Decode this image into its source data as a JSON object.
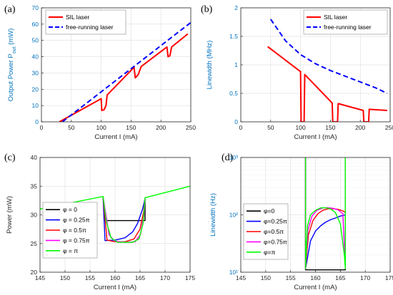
{
  "panel_letters": [
    "(a)",
    "(b)",
    "(c)",
    "(d)"
  ],
  "colors": {
    "sil": "#ff0000",
    "free": "#0000ff",
    "phi0": "#000000",
    "phi025": "#0000ff",
    "phi05": "#ff0000",
    "phi075": "#ff00ff",
    "phi1": "#00ff00",
    "axis_blue": "#0072bd",
    "axis_dark": "#262626"
  },
  "chart_data": [
    {
      "panel": "(a)",
      "type": "line",
      "xlabel": "Current I (mA)",
      "ylabel": "Output Power P_out (mW)",
      "xlim": [
        0,
        250
      ],
      "ylim": [
        0,
        70
      ],
      "xticks": [
        0,
        50,
        100,
        150,
        200,
        250
      ],
      "yticks": [
        0,
        10,
        20,
        30,
        40,
        50,
        60,
        70
      ],
      "grid": true,
      "legend": "top-left",
      "series": [
        {
          "name": "SIL laser",
          "style": "solid",
          "color": "#ff0000",
          "points": [
            [
              30,
              0
            ],
            [
              100,
              14.2
            ],
            [
              101,
              7
            ],
            [
              105,
              7.5
            ],
            [
              108,
              10
            ],
            [
              110,
              16.5
            ],
            [
              155,
              33.5
            ],
            [
              157,
              27
            ],
            [
              162,
              29
            ],
            [
              167,
              34
            ],
            [
              210,
              46
            ],
            [
              212,
              40
            ],
            [
              215,
              40.5
            ],
            [
              218,
              46
            ],
            [
              245,
              54
            ]
          ]
        },
        {
          "name": "free-running laser",
          "style": "dashed",
          "color": "#0000ff",
          "points": [
            [
              35,
              0
            ],
            [
              250,
              61
            ]
          ]
        }
      ]
    },
    {
      "panel": "(b)",
      "type": "line",
      "xlabel": "Current I (mA)",
      "ylabel": "Linewidth (MHz)",
      "xlim": [
        0,
        250
      ],
      "ylim": [
        0,
        2
      ],
      "xticks": [
        0,
        50,
        100,
        150,
        200,
        250
      ],
      "yticks": [
        0,
        0.5,
        1,
        1.5,
        2
      ],
      "grid": true,
      "legend": "top-right",
      "series": [
        {
          "name": "SIL laser",
          "style": "solid",
          "color": "#ff0000",
          "points": [
            [
              45,
              1.32
            ],
            [
              100,
              0.88
            ],
            [
              101,
              0
            ],
            [
              106,
              0
            ],
            [
              107,
              0.83
            ],
            [
              153,
              0.33
            ],
            [
              154,
              0
            ],
            [
              162,
              0
            ],
            [
              163,
              0.32
            ],
            [
              205,
              0.2
            ],
            [
              206,
              0
            ],
            [
              214,
              0
            ],
            [
              215,
              0.22
            ],
            [
              245,
              0.2
            ]
          ]
        },
        {
          "name": "free-running laser",
          "style": "dashed",
          "color": "#0000ff",
          "points": [
            [
              50,
              1.8
            ],
            [
              75,
              1.42
            ],
            [
              100,
              1.18
            ],
            [
              125,
              1.02
            ],
            [
              150,
              0.9
            ],
            [
              175,
              0.8
            ],
            [
              200,
              0.7
            ],
            [
              225,
              0.6
            ],
            [
              245,
              0.5
            ]
          ]
        }
      ]
    },
    {
      "panel": "(c)",
      "type": "line",
      "xlabel": "Current I (mA)",
      "ylabel": "Power (mW)",
      "xlim": [
        145,
        175
      ],
      "ylim": [
        20,
        40
      ],
      "xticks": [
        145,
        150,
        155,
        160,
        165,
        170,
        175
      ],
      "yticks": [
        20,
        25,
        30,
        35,
        40
      ],
      "grid": true,
      "legend": "bottom-left",
      "series": [
        {
          "name": "φ = 0",
          "color": "#000000",
          "points": [
            [
              157.6,
              33.2
            ],
            [
              158,
              29
            ],
            [
              166,
              29
            ],
            [
              166,
              32.7
            ]
          ]
        },
        {
          "name": "φ = 0.25π",
          "color": "#0000ff",
          "points": [
            [
              157.6,
              33.2
            ],
            [
              158,
              25.5
            ],
            [
              160,
              25.6
            ],
            [
              162,
              26
            ],
            [
              163.5,
              27
            ],
            [
              164.5,
              28.5
            ],
            [
              165.5,
              31
            ],
            [
              166,
              32.8
            ]
          ]
        },
        {
          "name": "φ = 0.5π",
          "color": "#ff0000",
          "points": [
            [
              157.6,
              33.2
            ],
            [
              158.4,
              25.6
            ],
            [
              160,
              25.3
            ],
            [
              162,
              25.3
            ],
            [
              163.8,
              25.8
            ],
            [
              165,
              27.5
            ],
            [
              165.7,
              30.5
            ],
            [
              166,
              32.8
            ]
          ]
        },
        {
          "name": "φ = 0.75π",
          "color": "#ff00ff",
          "points": [
            [
              157.6,
              33.2
            ],
            [
              158.8,
              26.5
            ],
            [
              160,
              25.4
            ],
            [
              162,
              25.2
            ],
            [
              164,
              25.3
            ],
            [
              165.1,
              26.6
            ],
            [
              165.8,
              30
            ],
            [
              166,
              32.8
            ]
          ]
        },
        {
          "name": "φ = π",
          "color": "#00ff00",
          "points": [
            [
              145,
              31
            ],
            [
              157.6,
              33.2
            ],
            [
              158.2,
              29
            ],
            [
              159.2,
              26
            ],
            [
              160.5,
              25.2
            ],
            [
              163.5,
              25.2
            ],
            [
              164.8,
              25.8
            ],
            [
              165.6,
              28.5
            ],
            [
              166,
              33
            ],
            [
              175,
              35
            ]
          ]
        }
      ]
    },
    {
      "panel": "(d)",
      "type": "line",
      "xlabel": "Current I (mA)",
      "ylabel": "Linewidth (Hz)",
      "xlim": [
        145,
        175
      ],
      "ylim": [
        10,
        1000
      ],
      "yscale": "log",
      "xticks": [
        145,
        150,
        155,
        160,
        165,
        170,
        175
      ],
      "yticks": [
        10,
        100,
        1000
      ],
      "ytick_labels": [
        "10¹",
        "10²",
        "10³"
      ],
      "grid": true,
      "legend": "left",
      "series": [
        {
          "name": "φ=0",
          "color": "#000000",
          "points": [
            [
              158,
              1000
            ],
            [
              158,
              11
            ],
            [
              166,
              11
            ],
            [
              166,
              1000
            ]
          ]
        },
        {
          "name": "φ=0.25π",
          "color": "#0000ff",
          "points": [
            [
              158,
              1000
            ],
            [
              158,
              11.5
            ],
            [
              159,
              35
            ],
            [
              160,
              52
            ],
            [
              161,
              64
            ],
            [
              162,
              74
            ],
            [
              163,
              82
            ],
            [
              164,
              88
            ],
            [
              165,
              95
            ],
            [
              166,
              100
            ],
            [
              166,
              1000
            ]
          ]
        },
        {
          "name": "φ=0.5π",
          "color": "#ff0000",
          "points": [
            [
              158,
              1000
            ],
            [
              158,
              11.5
            ],
            [
              158.6,
              45
            ],
            [
              159.5,
              80
            ],
            [
              160.5,
              105
            ],
            [
              161.5,
              120
            ],
            [
              162.5,
              127
            ],
            [
              163.5,
              128
            ],
            [
              164.5,
              125
            ],
            [
              165.5,
              117
            ],
            [
              166,
              110
            ],
            [
              166,
              1000
            ]
          ]
        },
        {
          "name": "φ=0.75π",
          "color": "#ff00ff",
          "points": [
            [
              158,
              1000
            ],
            [
              158,
              11.5
            ],
            [
              158.5,
              55
            ],
            [
              159.3,
              95
            ],
            [
              160.3,
              120
            ],
            [
              161.5,
              132
            ],
            [
              162.5,
              133
            ],
            [
              163.5,
              130
            ],
            [
              164.5,
              122
            ],
            [
              165.5,
              105
            ],
            [
              166,
              11.5
            ],
            [
              166,
              1000
            ]
          ]
        },
        {
          "name": "φ=π",
          "color": "#00ff00",
          "points": [
            [
              158,
              1000
            ],
            [
              158,
              11.5
            ],
            [
              158.4,
              65
            ],
            [
              159,
              100
            ],
            [
              160,
              120
            ],
            [
              161,
              132
            ],
            [
              162,
              133
            ],
            [
              163,
              128
            ],
            [
              164,
              110
            ],
            [
              165,
              70
            ],
            [
              165.8,
              20
            ],
            [
              166,
              11.5
            ],
            [
              166,
              1000
            ]
          ]
        }
      ]
    }
  ]
}
